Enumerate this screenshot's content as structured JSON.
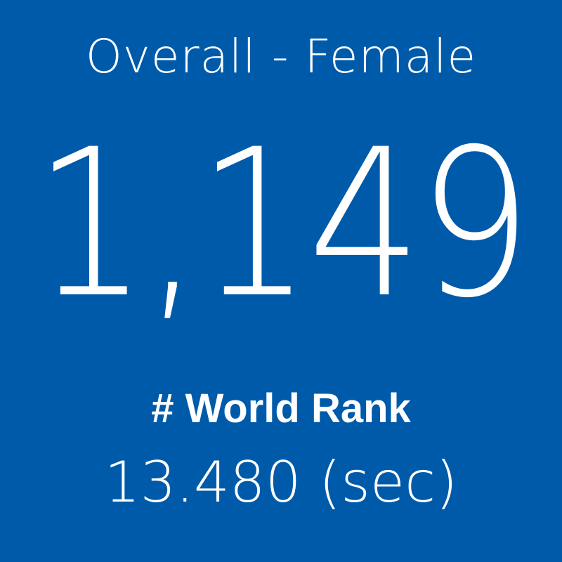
{
  "header": {
    "title": "Overall - Female"
  },
  "rank": {
    "value": "1,149",
    "label": "# World Rank"
  },
  "time": "13.480 (sec)"
}
